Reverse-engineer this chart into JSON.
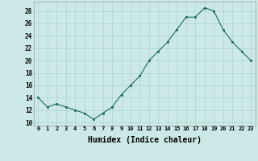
{
  "x": [
    0,
    1,
    2,
    3,
    4,
    5,
    6,
    7,
    8,
    9,
    10,
    11,
    12,
    13,
    14,
    15,
    16,
    17,
    18,
    19,
    20,
    21,
    22,
    23
  ],
  "y": [
    14.0,
    12.5,
    13.0,
    12.5,
    12.0,
    11.5,
    10.5,
    11.5,
    12.5,
    14.5,
    16.0,
    17.5,
    20.0,
    21.5,
    23.0,
    25.0,
    27.0,
    27.0,
    28.5,
    28.0,
    25.0,
    23.0,
    21.5,
    20.0
  ],
  "line_color": "#1a6b5a",
  "marker_color": "#1a6b5a",
  "bg_color": "#cce9e7",
  "grid_color": "#aad4d0",
  "xlabel": "Humidex (Indice chaleur)",
  "xlabel_fontsize": 7,
  "xtick_labels": [
    "0",
    "1",
    "2",
    "3",
    "4",
    "5",
    "6",
    "7",
    "8",
    "9",
    "10",
    "11",
    "12",
    "13",
    "14",
    "15",
    "16",
    "17",
    "18",
    "19",
    "20",
    "21",
    "22",
    "23"
  ],
  "ytick_values": [
    10,
    12,
    14,
    16,
    18,
    20,
    22,
    24,
    26,
    28
  ],
  "ylim": [
    9.5,
    29.5
  ],
  "xlim": [
    -0.5,
    23.5
  ]
}
